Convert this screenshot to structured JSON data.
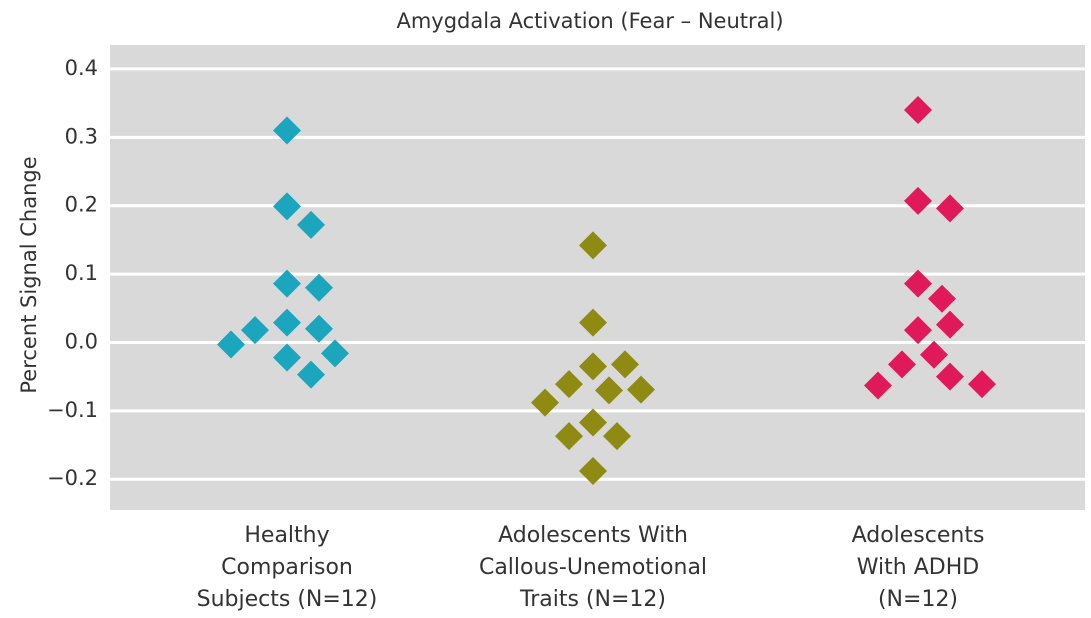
{
  "chart_data": {
    "type": "strip",
    "title": "Amygdala Activation (Fear – Neutral)",
    "y_label": "Percent Signal Change",
    "categories": [
      "Healthy Comparison Subjects (N=12)",
      "Adolescents With Callous-Unemotional Traits (N=12)",
      "Adolescents With ADHD (N=12)"
    ],
    "series": [
      {
        "color": "#1ba6bd",
        "values": [
          0.31,
          0.199,
          0.172,
          0.086,
          0.08,
          0.029,
          0.02,
          0.018,
          -0.022,
          -0.016,
          -0.003,
          -0.047
        ]
      },
      {
        "color": "#8f8a12",
        "values": [
          0.142,
          0.029,
          -0.035,
          -0.032,
          -0.07,
          -0.061,
          -0.069,
          -0.088,
          -0.117,
          -0.137,
          -0.137,
          -0.188
        ]
      },
      {
        "color": "#e0195a",
        "values": [
          0.34,
          0.207,
          0.196,
          0.086,
          0.064,
          0.018,
          0.026,
          -0.018,
          -0.032,
          -0.05,
          -0.063,
          -0.061
        ]
      }
    ],
    "ylim": [
      -0.245,
      0.435
    ],
    "yticks": [
      0.4,
      0.3,
      0.2,
      0.1,
      {
        "value": 0,
        "label": "0.0"
      },
      {
        "value": -0.1,
        "label": "−0.1"
      },
      {
        "value": -0.2,
        "label": "−0.2"
      }
    ],
    "grid": true
  }
}
